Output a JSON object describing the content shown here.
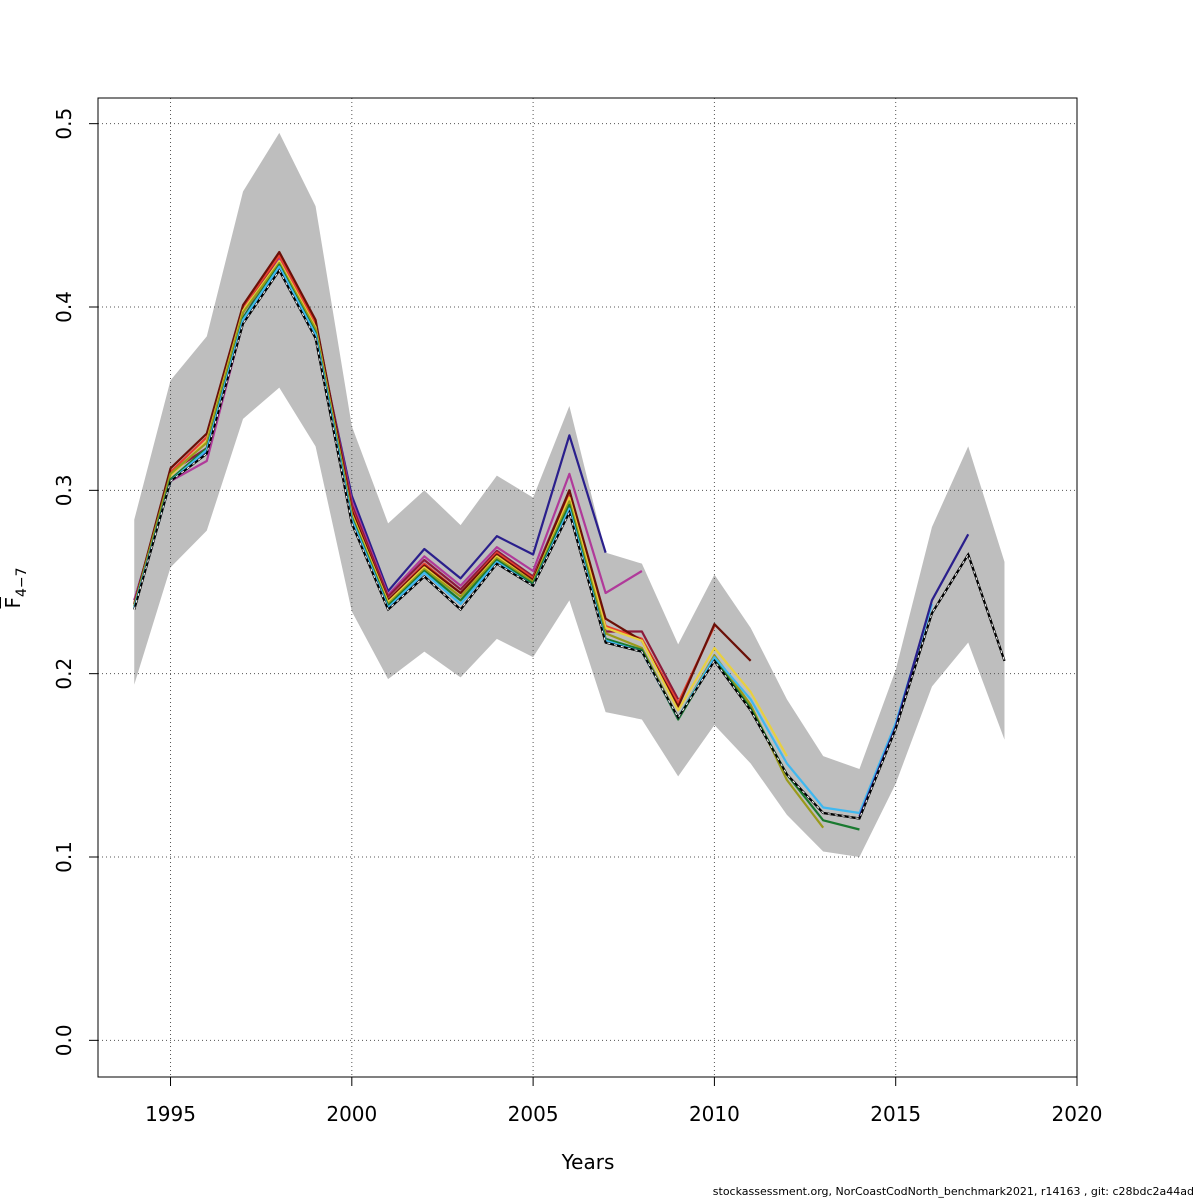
{
  "chart_data": {
    "type": "line",
    "xlabel": "Years",
    "ylabel": {
      "base": "F",
      "sub": "4−7"
    },
    "xlim": [
      1993,
      2020
    ],
    "ylim": [
      -0.02,
      0.514
    ],
    "xticks": [
      1995,
      2000,
      2005,
      2010,
      2015,
      2020
    ],
    "yticks": [
      0.0,
      0.1,
      0.2,
      0.3,
      0.4,
      0.5
    ],
    "ytick_labels": [
      "0.0",
      "0.1",
      "0.2",
      "0.3",
      "0.4",
      "0.5"
    ],
    "grid": true,
    "confidence_band": {
      "color": "#bebebe",
      "x": [
        1994,
        1995,
        1996,
        1997,
        1998,
        1999,
        2000,
        2001,
        2002,
        2003,
        2004,
        2005,
        2006,
        2007,
        2008,
        2009,
        2010,
        2011,
        2012,
        2013,
        2014,
        2015,
        2016,
        2017,
        2018
      ],
      "lower": [
        0.194,
        0.258,
        0.278,
        0.339,
        0.356,
        0.324,
        0.234,
        0.197,
        0.212,
        0.198,
        0.219,
        0.209,
        0.24,
        0.179,
        0.175,
        0.144,
        0.172,
        0.151,
        0.123,
        0.103,
        0.1,
        0.14,
        0.193,
        0.217,
        0.164
      ],
      "upper": [
        0.284,
        0.36,
        0.384,
        0.463,
        0.495,
        0.455,
        0.335,
        0.282,
        0.3,
        0.281,
        0.308,
        0.296,
        0.346,
        0.266,
        0.26,
        0.216,
        0.254,
        0.225,
        0.186,
        0.155,
        0.148,
        0.202,
        0.28,
        0.324,
        0.261
      ]
    },
    "series": [
      {
        "color": "#000000",
        "dashed": true,
        "x": [
          1994,
          1995,
          1996,
          1997,
          1998,
          1999,
          2000,
          2001,
          2002,
          2003,
          2004,
          2005,
          2006,
          2007,
          2008,
          2009,
          2010,
          2011,
          2012,
          2013,
          2014,
          2015,
          2016,
          2017,
          2018
        ],
        "values": [
          0.235,
          0.305,
          0.32,
          0.391,
          0.42,
          0.383,
          0.282,
          0.235,
          0.253,
          0.235,
          0.26,
          0.248,
          0.288,
          0.217,
          0.212,
          0.176,
          0.207,
          0.18,
          0.145,
          0.124,
          0.121,
          0.17,
          0.233,
          0.265,
          0.207
        ]
      },
      {
        "color": "#2a1f8c",
        "x": [
          1994,
          1995,
          1996,
          1997,
          1998,
          1999,
          2000,
          2001,
          2002,
          2003,
          2004,
          2005,
          2006,
          2007
        ],
        "values": [
          0.24,
          0.306,
          0.321,
          0.394,
          0.425,
          0.388,
          0.297,
          0.245,
          0.268,
          0.252,
          0.275,
          0.265,
          0.33,
          0.266
        ]
      },
      {
        "color": "#b03a9a",
        "x": [
          1994,
          1995,
          1996,
          1997,
          1998,
          1999,
          2000,
          2001,
          2002,
          2003,
          2004,
          2005,
          2006,
          2007,
          2008
        ],
        "values": [
          0.24,
          0.305,
          0.316,
          0.392,
          0.427,
          0.39,
          0.294,
          0.243,
          0.264,
          0.248,
          0.269,
          0.256,
          0.309,
          0.244,
          0.256
        ]
      },
      {
        "color": "#8b1a3a",
        "x": [
          1994,
          1995,
          1996,
          1997,
          1998,
          1999,
          2000,
          2001,
          2002,
          2003,
          2004,
          2005,
          2006,
          2007,
          2008,
          2009
        ],
        "values": [
          0.238,
          0.31,
          0.323,
          0.397,
          0.428,
          0.392,
          0.292,
          0.242,
          0.262,
          0.246,
          0.267,
          0.253,
          0.3,
          0.223,
          0.223,
          0.186
        ]
      },
      {
        "color": "#e84030",
        "x": [
          1994,
          1995,
          1996,
          1997,
          1998,
          1999,
          2000,
          2001,
          2002,
          2003,
          2004,
          2005,
          2006,
          2007,
          2008,
          2009,
          2010
        ],
        "values": [
          0.238,
          0.31,
          0.329,
          0.4,
          0.428,
          0.391,
          0.29,
          0.24,
          0.26,
          0.244,
          0.266,
          0.252,
          0.297,
          0.226,
          0.219,
          0.184,
          0.226
        ]
      },
      {
        "color": "#6b1008",
        "x": [
          1994,
          1995,
          1996,
          1997,
          1998,
          1999,
          2000,
          2001,
          2002,
          2003,
          2004,
          2005,
          2006,
          2007,
          2008,
          2009,
          2010,
          2011
        ],
        "values": [
          0.238,
          0.312,
          0.331,
          0.401,
          0.43,
          0.393,
          0.289,
          0.24,
          0.259,
          0.244,
          0.265,
          0.251,
          0.3,
          0.23,
          0.218,
          0.182,
          0.227,
          0.207
        ]
      },
      {
        "color": "#e8d040",
        "x": [
          1994,
          1995,
          1996,
          1997,
          1998,
          1999,
          2000,
          2001,
          2002,
          2003,
          2004,
          2005,
          2006,
          2007,
          2008,
          2009,
          2010,
          2011,
          2012
        ],
        "values": [
          0.237,
          0.308,
          0.327,
          0.398,
          0.425,
          0.389,
          0.287,
          0.239,
          0.258,
          0.242,
          0.264,
          0.25,
          0.296,
          0.225,
          0.218,
          0.18,
          0.214,
          0.19,
          0.155
        ]
      },
      {
        "color": "#9a9a1a",
        "x": [
          1994,
          1995,
          1996,
          1997,
          1998,
          1999,
          2000,
          2001,
          2002,
          2003,
          2004,
          2005,
          2006,
          2007,
          2008,
          2009,
          2010,
          2011,
          2012,
          2013
        ],
        "values": [
          0.237,
          0.309,
          0.326,
          0.397,
          0.424,
          0.388,
          0.286,
          0.238,
          0.257,
          0.242,
          0.263,
          0.25,
          0.294,
          0.222,
          0.214,
          0.176,
          0.21,
          0.183,
          0.142,
          0.116
        ]
      },
      {
        "color": "#1a7a30",
        "x": [
          1994,
          1995,
          1996,
          1997,
          1998,
          1999,
          2000,
          2001,
          2002,
          2003,
          2004,
          2005,
          2006,
          2007,
          2008,
          2009,
          2010,
          2011,
          2012,
          2013,
          2014
        ],
        "values": [
          0.236,
          0.306,
          0.323,
          0.394,
          0.423,
          0.386,
          0.285,
          0.237,
          0.256,
          0.24,
          0.262,
          0.249,
          0.292,
          0.219,
          0.213,
          0.175,
          0.208,
          0.181,
          0.145,
          0.12,
          0.115
        ]
      },
      {
        "color": "#40b8f0",
        "x": [
          1994,
          1995,
          1996,
          1997,
          1998,
          1999,
          2000,
          2001,
          2002,
          2003,
          2004,
          2005,
          2006,
          2007,
          2008,
          2009,
          2010,
          2011,
          2012,
          2013,
          2014,
          2015,
          2016
        ],
        "values": [
          0.236,
          0.305,
          0.322,
          0.393,
          0.422,
          0.385,
          0.284,
          0.236,
          0.255,
          0.238,
          0.261,
          0.248,
          0.29,
          0.218,
          0.212,
          0.176,
          0.209,
          0.186,
          0.151,
          0.127,
          0.124,
          0.173,
          0.238
        ]
      },
      {
        "color": "#2a1f8c",
        "x": [
          2014,
          2015,
          2016,
          2017
        ],
        "values": [
          0.122,
          0.171,
          0.24,
          0.276
        ]
      }
    ]
  },
  "footer": {
    "note": "stockassessment.org, NorCoastCodNorth_benchmark2021, r14163 , git: c28bdc2a44ad"
  }
}
